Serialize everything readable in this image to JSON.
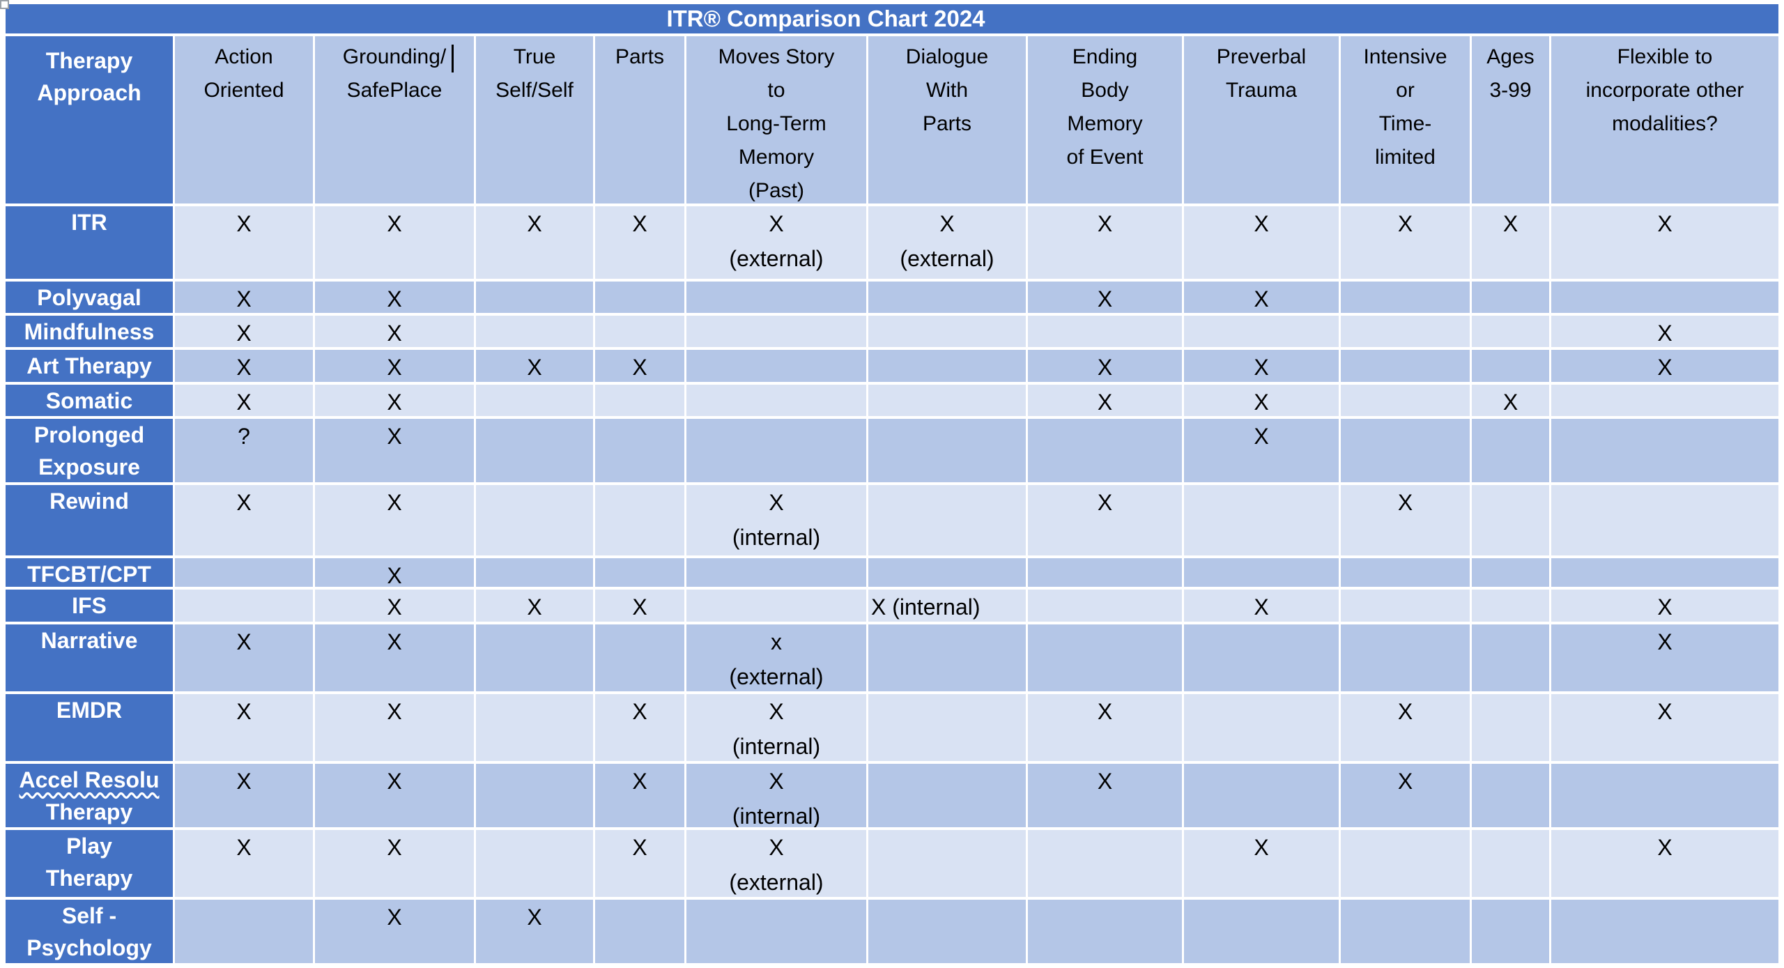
{
  "title": "ITR® Comparison Chart 2024",
  "colors": {
    "accent_blue": "#4472C4",
    "header_blue": "#B4C6E7",
    "row_light": "#D9E2F3",
    "row_dark": "#B4C6E7",
    "grid_white": "#FFFFFF",
    "label_text": "#FFFFFF",
    "data_text": "#000000"
  },
  "chart_data": {
    "type": "table",
    "title": "ITR® Comparison Chart 2024",
    "corner_header": "Therapy\nApproach",
    "columns": [
      "Action\nOriented",
      "Grounding/\nSafePlace",
      "True\nSelf/Self",
      "Parts",
      "Moves Story\nto\nLong-Term\nMemory\n(Past)",
      "Dialogue\nWith\nParts",
      "Ending\nBody\nMemory\nof Event",
      "Preverbal\nTrauma",
      "Intensive\nor\nTime-\nlimited",
      "Ages\n3-99",
      "Flexible to\nincorporate other\nmodalities?"
    ],
    "rows": [
      {
        "label": "ITR",
        "cells": [
          "X",
          "X",
          "X",
          "X",
          "X\n(external)",
          "X\n(external)",
          "X",
          "X",
          "X",
          "X",
          "X"
        ]
      },
      {
        "label": "Polyvagal",
        "cells": [
          "X",
          "X",
          "",
          "",
          "",
          "",
          "X",
          "X",
          "",
          "",
          ""
        ]
      },
      {
        "label": "Mindfulness",
        "cells": [
          "X",
          "X",
          "",
          "",
          "",
          "",
          "",
          "",
          "",
          "",
          "X"
        ]
      },
      {
        "label": "Art Therapy",
        "cells": [
          "X",
          "X",
          "X",
          "X",
          "",
          "",
          "X",
          "X",
          "",
          "",
          "X"
        ]
      },
      {
        "label": "Somatic",
        "cells": [
          "X",
          "X",
          "",
          "",
          "",
          "",
          "X",
          "X",
          "",
          "X",
          ""
        ]
      },
      {
        "label": "Prolonged\nExposure",
        "cells": [
          "?",
          "X",
          "",
          "",
          "",
          "",
          "",
          "X",
          "",
          "",
          ""
        ]
      },
      {
        "label": "Rewind",
        "cells": [
          "X",
          "X",
          "",
          "",
          "X\n(internal)",
          "",
          "X",
          "",
          "X",
          "",
          ""
        ]
      },
      {
        "label": "TFCBT/CPT",
        "cells": [
          "",
          "X",
          "",
          "",
          "",
          "",
          "",
          "",
          "",
          "",
          ""
        ]
      },
      {
        "label": "IFS",
        "cells": [
          "",
          "X",
          "X",
          "X",
          "",
          {
            "text": "X (internal)",
            "align": "left"
          },
          "",
          "X",
          "",
          "",
          "X"
        ]
      },
      {
        "label": "Narrative",
        "cells": [
          "X",
          "X",
          "",
          "",
          "x\n(external)",
          "",
          "",
          "",
          "",
          "",
          "X"
        ]
      },
      {
        "label": "EMDR",
        "cells": [
          "X",
          "X",
          "",
          "X",
          "X\n(internal)",
          "",
          "X",
          "",
          "X",
          "",
          "X"
        ]
      },
      {
        "label": "Accel Resolu\nTherapy",
        "label_wavy": true,
        "cells": [
          "X",
          "X",
          "",
          "X",
          "X\n(internal)",
          "",
          "X",
          "",
          "X",
          "",
          ""
        ]
      },
      {
        "label": "Play\nTherapy",
        "cells": [
          "X",
          "X",
          "",
          "X",
          "X\n(external)",
          "",
          "",
          "X",
          "",
          "",
          "X"
        ]
      },
      {
        "label": "Self -\nPsychology",
        "cells": [
          "",
          "X",
          "X",
          "",
          "",
          "",
          "",
          "",
          "",
          "",
          ""
        ]
      }
    ]
  }
}
